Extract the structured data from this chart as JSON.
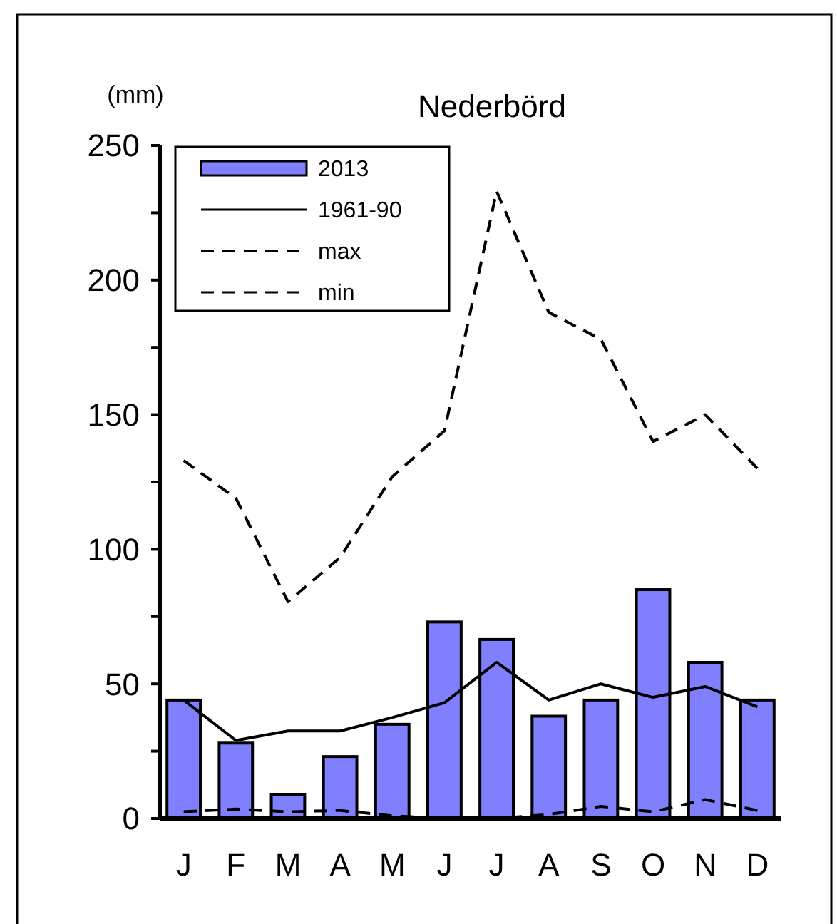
{
  "chart_data": {
    "type": "bar",
    "title": "Nederbörd",
    "ylabel": "(mm)",
    "categories": [
      "J",
      "F",
      "M",
      "A",
      "M",
      "J",
      "J",
      "A",
      "S",
      "O",
      "N",
      "D"
    ],
    "series": [
      {
        "name": "2013",
        "color": "#8080ff",
        "values": [
          44,
          28,
          9,
          23,
          35,
          73,
          66.5,
          38,
          44,
          85,
          58,
          44
        ]
      },
      {
        "name": "1961-90",
        "type": "line",
        "color": "#000000",
        "line_style": "solid",
        "values": [
          44,
          29,
          32.5,
          32.5,
          37.5,
          43,
          58,
          44,
          50,
          45,
          49,
          41.5
        ]
      },
      {
        "name": "max",
        "type": "line",
        "color": "#000000",
        "line_style": "dashed",
        "values": [
          133,
          119,
          80.5,
          97,
          127,
          144,
          233,
          188,
          178,
          140,
          150,
          130
        ]
      },
      {
        "name": "min",
        "type": "line",
        "color": "#000000",
        "line_style": "dashed",
        "values": [
          2.5,
          3.5,
          2.5,
          3,
          1,
          0,
          0,
          1.5,
          4.5,
          2.5,
          7,
          3
        ]
      }
    ],
    "ylim": [
      0,
      250
    ],
    "yticks": [
      0,
      {
        "value": 25,
        "label": null
      },
      50,
      {
        "value": 75,
        "label": null
      },
      100,
      {
        "value": 125,
        "label": null
      },
      150,
      {
        "value": 175,
        "label": null
      },
      200,
      {
        "value": 225,
        "label": null
      },
      250
    ],
    "legend": "top left",
    "grid": false
  }
}
